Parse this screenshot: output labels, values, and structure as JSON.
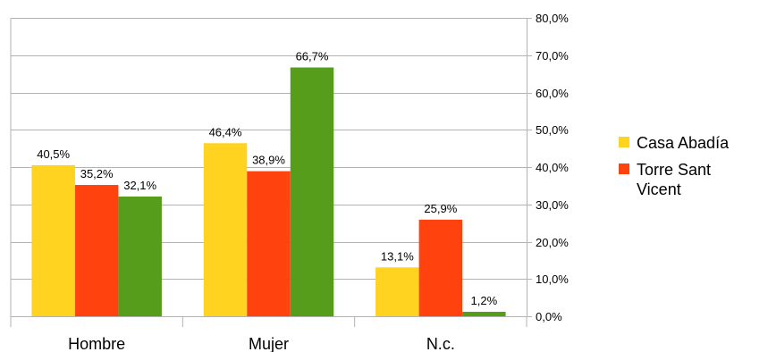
{
  "chart_data": {
    "type": "bar",
    "categories": [
      "Hombre",
      "Mujer",
      "N.c."
    ],
    "series": [
      {
        "name": "Casa Abadía",
        "color": "#ffd320",
        "values": [
          40.5,
          46.4,
          13.1
        ],
        "labels": [
          "40,5%",
          "46,4%",
          "13,1%"
        ]
      },
      {
        "name": "Torre Sant Vicent",
        "color": "#ff420e",
        "values": [
          35.2,
          38.9,
          25.9
        ],
        "labels": [
          "35,2%",
          "38,9%",
          "25,9%"
        ]
      },
      {
        "name": "",
        "color": "#579d1c",
        "values": [
          32.1,
          66.7,
          1.2
        ],
        "labels": [
          "32,1%",
          "66,7%",
          "1,2%"
        ]
      }
    ],
    "ylim": [
      0,
      80
    ],
    "yticks": [
      0,
      10,
      20,
      30,
      40,
      50,
      60,
      70,
      80
    ],
    "ytick_labels": [
      "0,0%",
      "10,0%",
      "20,0%",
      "30,0%",
      "40,0%",
      "50,0%",
      "60,0%",
      "70,0%",
      "80,0%"
    ],
    "y_axis_side": "right",
    "grid": true,
    "legend": {
      "position": "right",
      "entries": [
        {
          "label_lines": [
            "Casa Abadía"
          ],
          "color": "#ffd320"
        },
        {
          "label_lines": [
            "Torre Sant",
            "Vicent"
          ],
          "color": "#ff420e"
        }
      ]
    },
    "gridline_color": "#b3b3b3",
    "axis_color": "#b3b3b3"
  }
}
